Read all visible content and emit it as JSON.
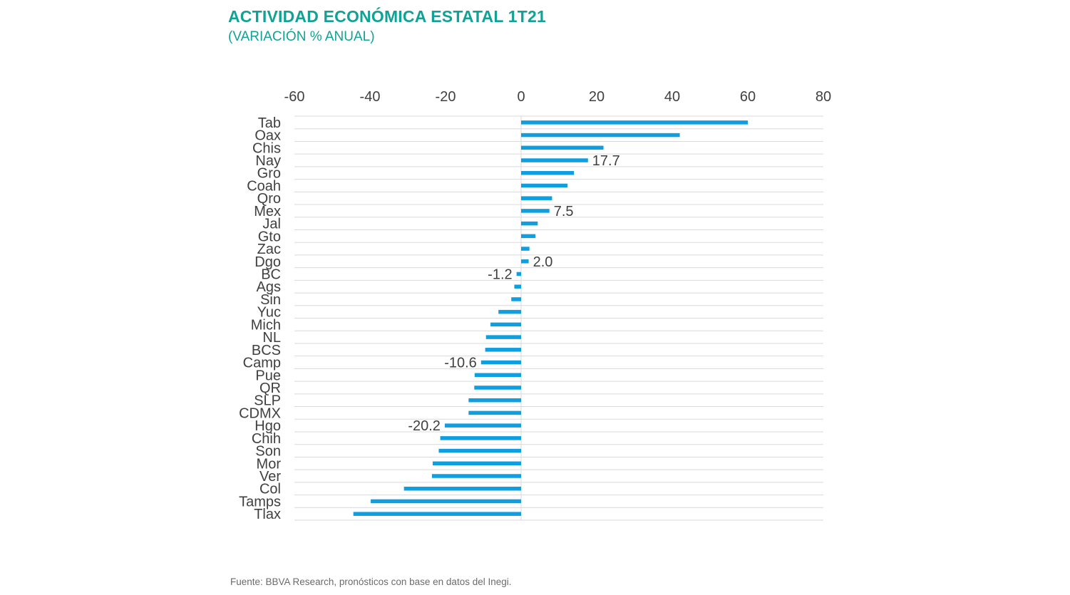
{
  "title": "ACTIVIDAD ECONÓMICA ESTATAL 1T21",
  "subtitle": "(VARIACIÓN % ANUAL)",
  "source": "Fuente: BBVA Research, pronósticos con base en datos del Inegi.",
  "colors": {
    "title": "#12a195",
    "bar": "#0f9ee0",
    "grid": "#d9d9d9",
    "text": "#404040"
  },
  "chart_data": {
    "type": "bar",
    "orientation": "horizontal",
    "title": "ACTIVIDAD ECONÓMICA ESTATAL 1T21",
    "subtitle": "(VARIACIÓN % ANUAL)",
    "xlim": [
      -60,
      80
    ],
    "x_ticks": [
      "-60",
      "-40",
      "-20",
      "0",
      "20",
      "40",
      "60",
      "80"
    ],
    "axis_position": "top",
    "grid": true,
    "categories": [
      "Tab",
      "Oax",
      "Chis",
      "Nay",
      "Gro",
      "Coah",
      "Qro",
      "Mex",
      "Jal",
      "Gto",
      "Zac",
      "Dgo",
      "BC",
      "Ags",
      "Sin",
      "Yuc",
      "Mich",
      "NL",
      "BCS",
      "Camp",
      "Pue",
      "QR",
      "SLP",
      "CDMX",
      "Hgo",
      "Chih",
      "Son",
      "Mor",
      "Ver",
      "Col",
      "Tamps",
      "Tlax"
    ],
    "values": [
      60.0,
      42.0,
      21.8,
      17.7,
      14.0,
      12.3,
      8.2,
      7.5,
      4.4,
      3.8,
      2.2,
      2.0,
      -1.2,
      -1.8,
      -2.6,
      -6.0,
      -8.1,
      -9.3,
      -9.5,
      -10.6,
      -12.3,
      -12.4,
      -13.9,
      -13.9,
      -20.2,
      -21.4,
      -21.8,
      -23.4,
      -23.6,
      -31.0,
      -39.8,
      -44.4
    ],
    "data_labels": [
      {
        "category": "Nay",
        "text": "17.7"
      },
      {
        "category": "Mex",
        "text": "7.5"
      },
      {
        "category": "Dgo",
        "text": "2.0"
      },
      {
        "category": "BC",
        "text": "-1.2"
      },
      {
        "category": "Camp",
        "text": "-10.6"
      },
      {
        "category": "Hgo",
        "text": "-20.2"
      }
    ]
  }
}
